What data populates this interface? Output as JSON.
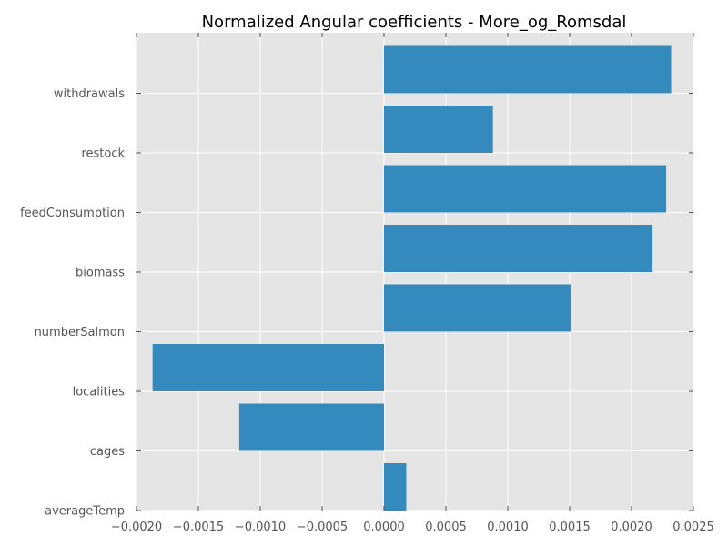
{
  "chart_data": {
    "type": "bar",
    "orientation": "horizontal",
    "title": "Normalized Angular coefficients - More_og_Romsdal",
    "xlabel": "",
    "ylabel": "",
    "categories": [
      "averageTemp",
      "cages",
      "localities",
      "numberSalmon",
      "biomass",
      "feedConsumption",
      "restock",
      "withdrawals"
    ],
    "values": [
      0.00018,
      -0.00117,
      -0.00187,
      0.00151,
      0.00217,
      0.00228,
      0.00088,
      0.00232
    ],
    "xlim": [
      -0.002,
      0.0025
    ],
    "xticks": [
      -0.002,
      -0.0015,
      -0.001,
      -0.0005,
      0,
      0.0005,
      0.001,
      0.0015,
      0.002,
      0.0025
    ],
    "xtick_labels": [
      "−0.0020",
      "−0.0015",
      "−0.0010",
      "−0.0005",
      "0.0000",
      "0.0005",
      "0.0010",
      "0.0015",
      "0.0020",
      "0.0025"
    ],
    "grid": true,
    "legend": "none",
    "bar_color": "#348abd",
    "background_color": "#e5e5e5"
  }
}
